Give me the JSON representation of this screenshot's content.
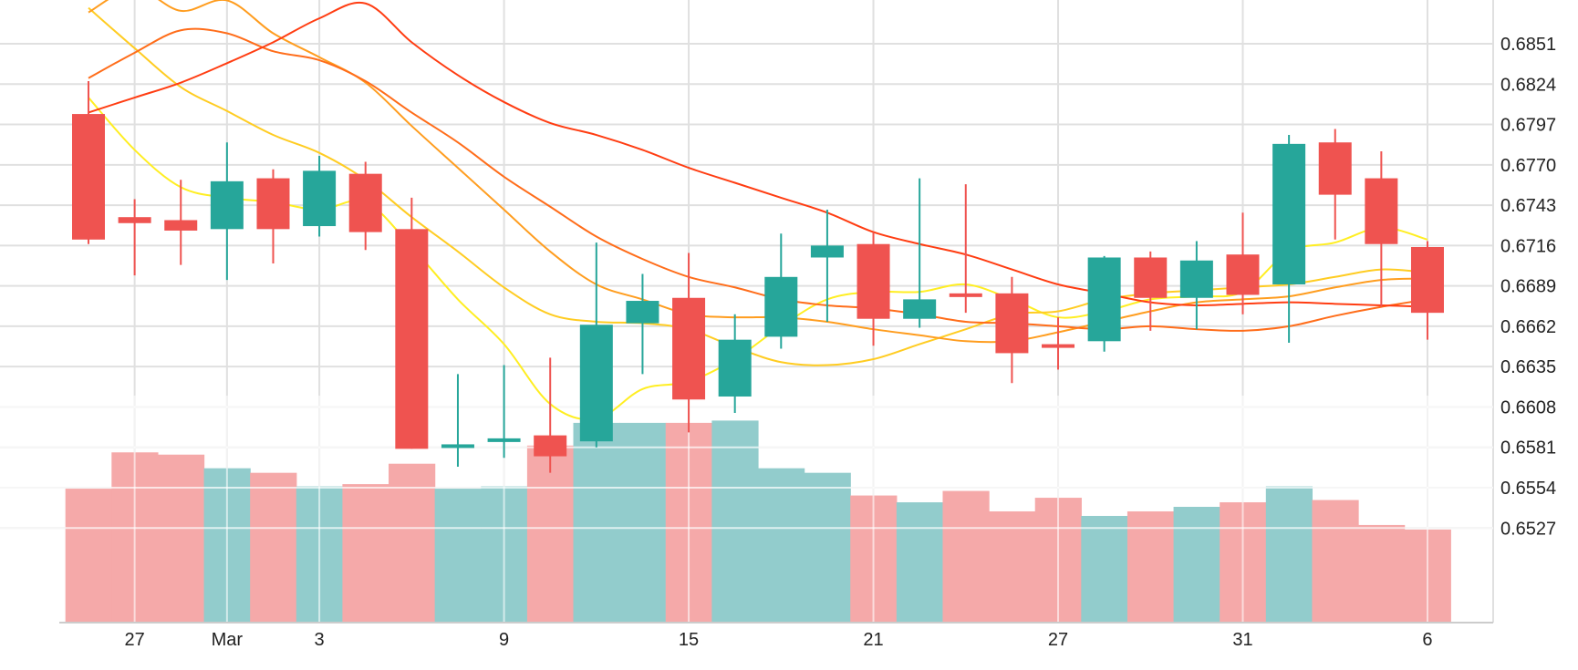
{
  "chart_data": {
    "type": "candlestick",
    "y_axis": {
      "position": "right",
      "ticks": [
        0.6851,
        0.6824,
        0.6797,
        0.677,
        0.6743,
        0.6716,
        0.6689,
        0.6662,
        0.6635,
        0.6608,
        0.6581,
        0.6554,
        0.6527
      ],
      "tick_labels": [
        "0.6851",
        "0.6824",
        "0.6797",
        "0.6770",
        "0.6743",
        "0.6716",
        "0.6689",
        "0.6662",
        "0.6635",
        "0.6608",
        "0.6581",
        "0.6554",
        "0.6527"
      ],
      "range": [
        0.65,
        0.688
      ]
    },
    "x_axis": {
      "tick_labels": [
        {
          "label": "27",
          "candle_index": 1
        },
        {
          "label": "Mar",
          "candle_index": 3
        },
        {
          "label": "3",
          "candle_index": 5
        },
        {
          "label": "9",
          "candle_index": 9
        },
        {
          "label": "15",
          "candle_index": 13
        },
        {
          "label": "21",
          "candle_index": 17
        },
        {
          "label": "27",
          "candle_index": 21
        },
        {
          "label": "31",
          "candle_index": 25
        },
        {
          "label": "6",
          "candle_index": 29
        }
      ]
    },
    "grid": true,
    "candles": [
      {
        "o": 0.6804,
        "h": 0.6826,
        "l": 0.6717,
        "c": 0.672
      },
      {
        "o": 0.6735,
        "h": 0.6747,
        "l": 0.6696,
        "c": 0.6731
      },
      {
        "o": 0.6733,
        "h": 0.676,
        "l": 0.6703,
        "c": 0.6726
      },
      {
        "o": 0.6727,
        "h": 0.6785,
        "l": 0.6693,
        "c": 0.6759
      },
      {
        "o": 0.6761,
        "h": 0.6767,
        "l": 0.6704,
        "c": 0.6727
      },
      {
        "o": 0.6729,
        "h": 0.6776,
        "l": 0.6722,
        "c": 0.6766
      },
      {
        "o": 0.6764,
        "h": 0.6772,
        "l": 0.6713,
        "c": 0.6725
      },
      {
        "o": 0.6727,
        "h": 0.6748,
        "l": 0.658,
        "c": 0.658
      },
      {
        "o": 0.6581,
        "h": 0.663,
        "l": 0.6568,
        "c": 0.6583
      },
      {
        "o": 0.6585,
        "h": 0.6636,
        "l": 0.6574,
        "c": 0.6587
      },
      {
        "o": 0.6589,
        "h": 0.6641,
        "l": 0.6564,
        "c": 0.6575
      },
      {
        "o": 0.6585,
        "h": 0.6718,
        "l": 0.6581,
        "c": 0.6663
      },
      {
        "o": 0.6664,
        "h": 0.6697,
        "l": 0.663,
        "c": 0.6679
      },
      {
        "o": 0.6681,
        "h": 0.6711,
        "l": 0.6591,
        "c": 0.6613
      },
      {
        "o": 0.6615,
        "h": 0.667,
        "l": 0.6604,
        "c": 0.6653
      },
      {
        "o": 0.6655,
        "h": 0.6724,
        "l": 0.6647,
        "c": 0.6695
      },
      {
        "o": 0.6708,
        "h": 0.674,
        "l": 0.6665,
        "c": 0.6716
      },
      {
        "o": 0.6717,
        "h": 0.6725,
        "l": 0.6649,
        "c": 0.6667
      },
      {
        "o": 0.6667,
        "h": 0.6761,
        "l": 0.6661,
        "c": 0.668
      },
      {
        "o": 0.6684,
        "h": 0.6757,
        "l": 0.6671,
        "c": 0.6682
      },
      {
        "o": 0.6684,
        "h": 0.6695,
        "l": 0.6624,
        "c": 0.6644
      },
      {
        "o": 0.665,
        "h": 0.6668,
        "l": 0.6633,
        "c": 0.6648
      },
      {
        "o": 0.6652,
        "h": 0.6709,
        "l": 0.6645,
        "c": 0.6708
      },
      {
        "o": 0.6708,
        "h": 0.6712,
        "l": 0.6659,
        "c": 0.6681
      },
      {
        "o": 0.6681,
        "h": 0.6719,
        "l": 0.666,
        "c": 0.6706
      },
      {
        "o": 0.671,
        "h": 0.6738,
        "l": 0.667,
        "c": 0.6683
      },
      {
        "o": 0.669,
        "h": 0.679,
        "l": 0.6651,
        "c": 0.6784
      },
      {
        "o": 0.6785,
        "h": 0.6794,
        "l": 0.672,
        "c": 0.675
      },
      {
        "o": 0.6761,
        "h": 0.6779,
        "l": 0.6675,
        "c": 0.6717
      },
      {
        "o": 0.6715,
        "h": 0.6719,
        "l": 0.6653,
        "c": 0.6671
      }
    ],
    "volume": {
      "range": [
        0,
        1
      ],
      "values": [
        0.59,
        0.75,
        0.74,
        0.68,
        0.66,
        0.6,
        0.61,
        0.7,
        0.59,
        0.6,
        0.78,
        0.88,
        0.88,
        0.88,
        0.89,
        0.68,
        0.66,
        0.56,
        0.53,
        0.58,
        0.49,
        0.55,
        0.47,
        0.49,
        0.51,
        0.53,
        0.6,
        0.54,
        0.43,
        0.41
      ]
    },
    "moving_averages": [
      {
        "color": "#ffee22",
        "values": [
          0.6815,
          0.678,
          0.6755,
          0.6748,
          0.6745,
          0.674,
          0.6745,
          0.6715,
          0.668,
          0.665,
          0.661,
          0.66,
          0.662,
          0.6625,
          0.664,
          0.6662,
          0.668,
          0.6685,
          0.6685,
          0.669,
          0.668,
          0.6668,
          0.6672,
          0.668,
          0.6682,
          0.6685,
          0.6712,
          0.6718,
          0.6728,
          0.672
        ]
      },
      {
        "color": "#ffcc22",
        "values": [
          0.6875,
          0.6848,
          0.6822,
          0.6806,
          0.679,
          0.6778,
          0.676,
          0.6735,
          0.6712,
          0.6688,
          0.667,
          0.6665,
          0.6664,
          0.666,
          0.6648,
          0.6638,
          0.6636,
          0.664,
          0.665,
          0.666,
          0.667,
          0.6672,
          0.668,
          0.6684,
          0.6686,
          0.6688,
          0.669,
          0.6695,
          0.67,
          0.6698
        ]
      },
      {
        "color": "#ff9d1f",
        "values": [
          0.6872,
          0.6888,
          0.6873,
          0.688,
          0.6858,
          0.6842,
          0.6825,
          0.6796,
          0.6768,
          0.674,
          0.6712,
          0.669,
          0.668,
          0.667,
          0.6668,
          0.6668,
          0.6665,
          0.666,
          0.6656,
          0.6652,
          0.6652,
          0.6658,
          0.6665,
          0.6672,
          0.6678,
          0.668,
          0.6682,
          0.6688,
          0.6693,
          0.6694
        ]
      },
      {
        "color": "#ff6d1a",
        "values": [
          0.6828,
          0.6845,
          0.686,
          0.6858,
          0.6846,
          0.684,
          0.6826,
          0.6805,
          0.6785,
          0.6762,
          0.6742,
          0.6722,
          0.6707,
          0.6695,
          0.6688,
          0.668,
          0.6676,
          0.6674,
          0.667,
          0.6665,
          0.6664,
          0.6662,
          0.666,
          0.6662,
          0.666,
          0.6659,
          0.6662,
          0.6669,
          0.6675,
          0.668
        ]
      },
      {
        "color": "#ff3d12",
        "values": [
          0.6805,
          0.6815,
          0.6825,
          0.6838,
          0.6852,
          0.6868,
          0.6878,
          0.6852,
          0.683,
          0.6812,
          0.6798,
          0.679,
          0.678,
          0.6768,
          0.6758,
          0.6748,
          0.6738,
          0.6725,
          0.6717,
          0.671,
          0.67,
          0.669,
          0.6684,
          0.6678,
          0.6676,
          0.6677,
          0.6678,
          0.6677,
          0.6676,
          0.6675
        ]
      }
    ],
    "colors": {
      "up": "#26a69a",
      "down": "#ef5350",
      "volume_up": "#92cccc",
      "volume_down": "#f5a9a9",
      "grid": "#e0e0e0",
      "axis": "#cccccc",
      "text": "#222222"
    }
  }
}
